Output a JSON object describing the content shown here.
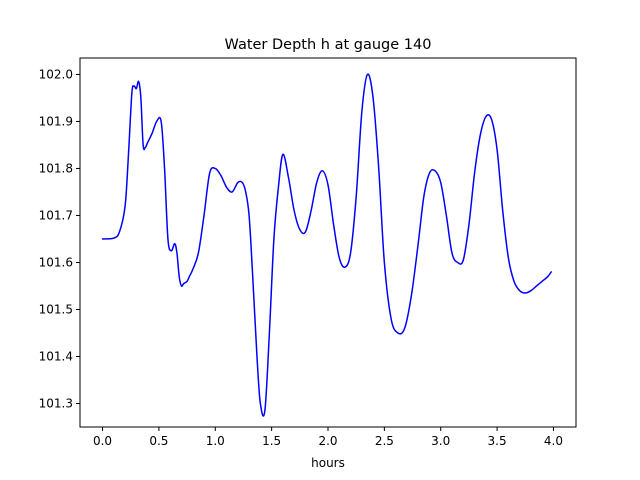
{
  "chart_data": {
    "type": "line",
    "title": "Water Depth h at gauge 140",
    "xlabel": "hours",
    "ylabel": "",
    "xlim": [
      -0.2,
      4.2
    ],
    "ylim": [
      101.25,
      102.035
    ],
    "xticks": [
      0.0,
      0.5,
      1.0,
      1.5,
      2.0,
      2.5,
      3.0,
      3.5,
      4.0
    ],
    "xtick_labels": [
      "0.0",
      "0.5",
      "1.0",
      "1.5",
      "2.0",
      "2.5",
      "3.0",
      "3.5",
      "4.0"
    ],
    "yticks": [
      101.3,
      101.4,
      101.5,
      101.6,
      101.7,
      101.8,
      101.9,
      102.0
    ],
    "ytick_labels": [
      "101.3",
      "101.4",
      "101.5",
      "101.6",
      "101.7",
      "101.8",
      "101.9",
      "102.0"
    ],
    "grid": false,
    "series": [
      {
        "color": "#0000ff",
        "x": [
          0.0,
          0.1,
          0.15,
          0.2,
          0.23,
          0.26,
          0.28,
          0.3,
          0.32,
          0.34,
          0.36,
          0.38,
          0.4,
          0.44,
          0.48,
          0.52,
          0.55,
          0.58,
          0.61,
          0.64,
          0.66,
          0.68,
          0.7,
          0.72,
          0.75,
          0.77,
          0.8,
          0.85,
          0.9,
          0.95,
          1.0,
          1.05,
          1.1,
          1.15,
          1.2,
          1.24,
          1.27,
          1.3,
          1.33,
          1.37,
          1.4,
          1.44,
          1.48,
          1.52,
          1.56,
          1.6,
          1.65,
          1.7,
          1.75,
          1.8,
          1.85,
          1.9,
          1.95,
          2.0,
          2.05,
          2.1,
          2.15,
          2.2,
          2.25,
          2.3,
          2.35,
          2.4,
          2.45,
          2.5,
          2.56,
          2.62,
          2.68,
          2.74,
          2.8,
          2.85,
          2.9,
          2.95,
          3.0,
          3.05,
          3.1,
          3.15,
          3.2,
          3.25,
          3.3,
          3.35,
          3.4,
          3.45,
          3.5,
          3.55,
          3.6,
          3.65,
          3.7,
          3.75,
          3.8,
          3.85,
          3.9,
          3.95,
          3.98
        ],
        "y": [
          101.65,
          101.652,
          101.665,
          101.72,
          101.83,
          101.96,
          101.975,
          101.97,
          101.985,
          101.95,
          101.85,
          101.845,
          101.855,
          101.875,
          101.9,
          101.9,
          101.8,
          101.65,
          101.625,
          101.64,
          101.62,
          101.57,
          101.55,
          101.555,
          101.56,
          101.57,
          101.585,
          101.62,
          101.7,
          101.79,
          101.8,
          101.785,
          101.76,
          101.75,
          101.77,
          101.77,
          101.75,
          101.7,
          101.58,
          101.4,
          101.3,
          101.285,
          101.45,
          101.65,
          101.76,
          101.83,
          101.78,
          101.71,
          101.67,
          101.665,
          101.71,
          101.77,
          101.795,
          101.765,
          101.68,
          101.61,
          101.59,
          101.62,
          101.74,
          101.92,
          102.0,
          101.95,
          101.8,
          101.6,
          101.48,
          101.45,
          101.46,
          101.53,
          101.64,
          101.74,
          101.79,
          101.795,
          101.77,
          101.7,
          101.62,
          101.6,
          101.605,
          101.68,
          101.79,
          101.87,
          101.91,
          101.905,
          101.84,
          101.71,
          101.61,
          101.56,
          101.54,
          101.535,
          101.54,
          101.55,
          101.56,
          101.57,
          101.58
        ]
      }
    ]
  }
}
